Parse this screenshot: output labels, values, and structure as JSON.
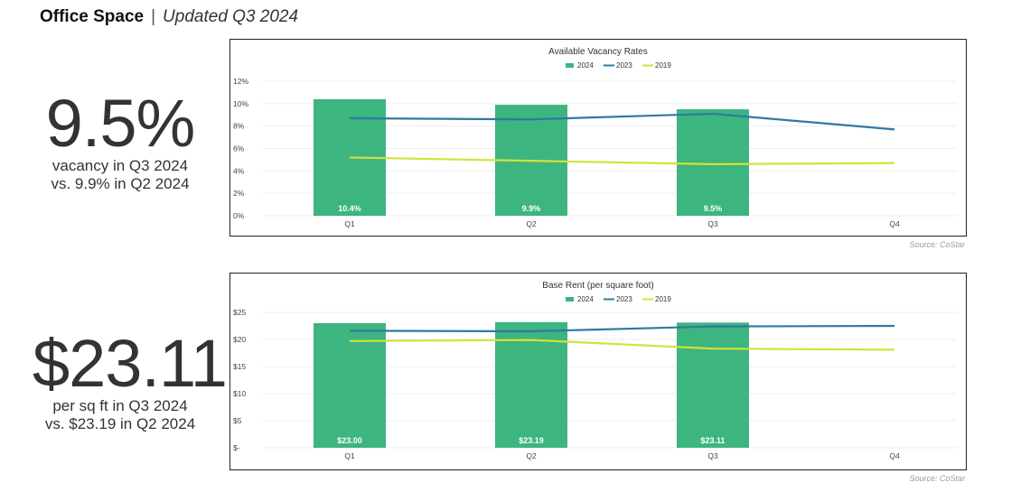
{
  "header": {
    "title": "Office Space",
    "subtitle": "Updated Q3 2024"
  },
  "stats": [
    {
      "big": "9.5%",
      "line1": "vacancy in Q3 2024",
      "line2": "vs. 9.9% in Q2 2024"
    },
    {
      "big": "$23.11",
      "line1": "per sq ft in Q3 2024",
      "line2": "vs. $23.19 in Q2 2024"
    }
  ],
  "sources": [
    "Source: CoStar",
    "Source: CoStar"
  ],
  "colors": {
    "bar2024": "#3db57f",
    "line2023": "#2f7aa1",
    "line2019": "#d4e237",
    "grid": "#eeeeee"
  },
  "chart_data": [
    {
      "type": "bar",
      "title": "Available Vacancy Rates",
      "categories": [
        "Q1",
        "Q2",
        "Q3",
        "Q4"
      ],
      "ylim": [
        0,
        12
      ],
      "yticks": [
        0,
        2,
        4,
        6,
        8,
        10,
        12
      ],
      "ytick_labels": [
        "0%",
        "2%",
        "4%",
        "6%",
        "8%",
        "10%",
        "12%"
      ],
      "legend_position": "top-center",
      "series": [
        {
          "name": "2024",
          "kind": "bar",
          "values": [
            10.4,
            9.9,
            9.5,
            null
          ],
          "labels": [
            "10.4%",
            "9.9%",
            "9.5%",
            ""
          ]
        },
        {
          "name": "2023",
          "kind": "line",
          "values": [
            8.7,
            8.6,
            9.1,
            7.7
          ]
        },
        {
          "name": "2019",
          "kind": "line",
          "values": [
            5.2,
            4.9,
            4.6,
            4.7
          ]
        }
      ]
    },
    {
      "type": "bar",
      "title": "Base Rent (per square foot)",
      "categories": [
        "Q1",
        "Q2",
        "Q3",
        "Q4"
      ],
      "ylim": [
        0,
        25
      ],
      "yticks": [
        0,
        5,
        10,
        15,
        20,
        25
      ],
      "ytick_labels": [
        "$-",
        "$5",
        "$10",
        "$15",
        "$20",
        "$25"
      ],
      "legend_position": "top-center",
      "series": [
        {
          "name": "2024",
          "kind": "bar",
          "values": [
            23.0,
            23.19,
            23.11,
            null
          ],
          "labels": [
            "$23.00",
            "$23.19",
            "$23.11",
            ""
          ]
        },
        {
          "name": "2023",
          "kind": "line",
          "values": [
            21.6,
            21.5,
            22.4,
            22.5
          ]
        },
        {
          "name": "2019",
          "kind": "line",
          "values": [
            19.7,
            19.9,
            18.3,
            18.1
          ]
        }
      ]
    }
  ]
}
